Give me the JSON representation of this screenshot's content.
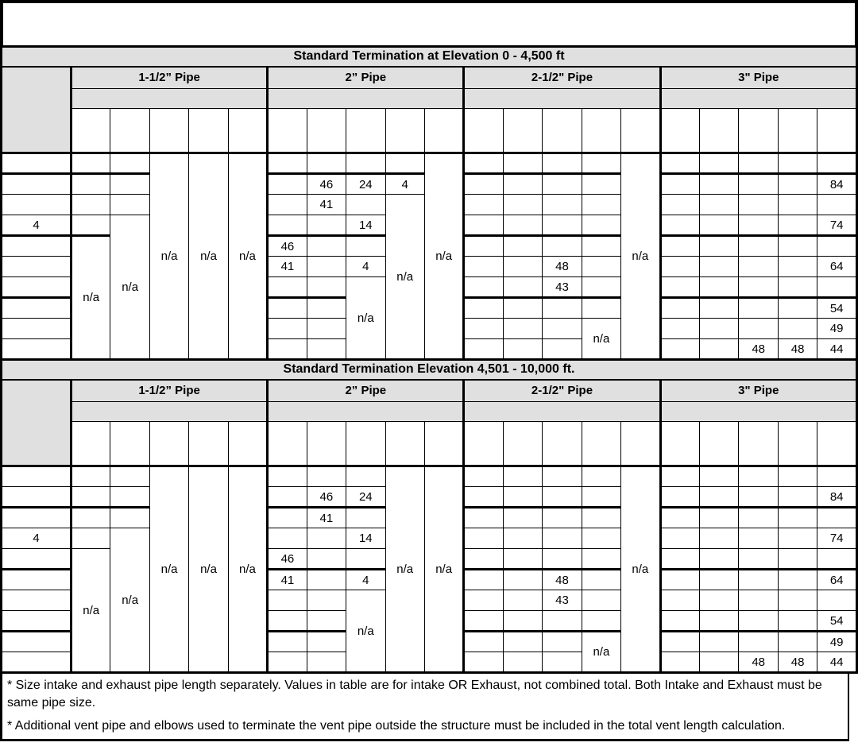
{
  "title_block": "",
  "tables": [
    {
      "title": "Standard Termination at Elevation 0 - 4,500 ft",
      "pipe_groups": [
        "1-1/2” Pipe",
        "2” Pipe",
        "2-1/2\" Pipe",
        "3\" Pipe"
      ],
      "thick_rows": [
        2,
        5,
        8
      ],
      "rows": [
        [
          "",
          "",
          "",
          {
            "t": "n/a",
            "rs": 10
          },
          {
            "t": "n/a",
            "rs": 10
          },
          {
            "t": "n/a",
            "rs": 10
          },
          "",
          "",
          "",
          "",
          {
            "t": "n/a",
            "rs": 10
          },
          "",
          "",
          "",
          "",
          {
            "t": "n/a",
            "rs": 10
          },
          "",
          "",
          "",
          "",
          ""
        ],
        [
          "",
          "",
          "",
          "",
          "46",
          "24",
          "4",
          "",
          "",
          "",
          "",
          "",
          "",
          "",
          "",
          "84"
        ],
        [
          "",
          "",
          "",
          "",
          "41",
          "",
          {
            "t": "n/a",
            "rs": 8
          },
          "",
          "",
          "",
          "",
          "",
          "",
          "",
          "",
          ""
        ],
        [
          "4",
          "",
          {
            "t": "n/a",
            "rs": 7
          },
          "",
          "",
          "14",
          "",
          "",
          "",
          "",
          "",
          "",
          "",
          "",
          "74"
        ],
        [
          "",
          {
            "t": "n/a",
            "rs": 6
          },
          "46",
          "",
          "",
          "",
          "",
          "",
          "",
          "",
          "",
          "",
          "",
          ""
        ],
        [
          "",
          "41",
          "",
          "4",
          "",
          "",
          "48",
          "",
          "",
          "",
          "",
          "",
          "64"
        ],
        [
          "",
          "",
          "",
          {
            "t": "n/a",
            "rs": 4
          },
          "",
          "",
          "43",
          "",
          "",
          "",
          "",
          "",
          ""
        ],
        [
          "",
          "",
          "",
          "",
          "",
          "",
          "",
          "",
          "",
          "",
          "",
          "54"
        ],
        [
          "",
          "",
          "",
          "",
          "",
          "",
          {
            "t": "n/a",
            "rs": 2
          },
          "",
          "",
          "",
          "",
          "49"
        ],
        [
          "",
          "",
          "",
          "",
          "",
          "",
          "",
          "",
          "48",
          "48",
          "44"
        ]
      ]
    },
    {
      "title": "Standard Termination Elevation 4,501 - 10,000 ft.",
      "pipe_groups": [
        "1-1/2” Pipe",
        "2” Pipe",
        "2-1/2\" Pipe",
        "3\" Pipe"
      ],
      "thick_rows": [
        3,
        6,
        9
      ],
      "rows": [
        [
          "",
          "",
          "",
          {
            "t": "n/a",
            "rs": 10
          },
          {
            "t": "n/a",
            "rs": 10
          },
          {
            "t": "n/a",
            "rs": 10
          },
          "",
          "",
          "",
          {
            "t": "n/a",
            "rs": 10
          },
          {
            "t": "n/a",
            "rs": 10
          },
          "",
          "",
          "",
          "",
          {
            "t": "n/a",
            "rs": 10
          },
          "",
          "",
          "",
          "",
          ""
        ],
        [
          "",
          "",
          "",
          "",
          "46",
          "24",
          "",
          "",
          "",
          "",
          "",
          "",
          "",
          "",
          "84"
        ],
        [
          "",
          "",
          "",
          "",
          "41",
          "",
          "",
          "",
          "",
          "",
          "",
          "",
          "",
          "",
          ""
        ],
        [
          "4",
          "",
          {
            "t": "n/a",
            "rs": 7
          },
          "",
          "",
          "14",
          "",
          "",
          "",
          "",
          "",
          "",
          "",
          "",
          "74"
        ],
        [
          "",
          {
            "t": "n/a",
            "rs": 6
          },
          "46",
          "",
          "",
          "",
          "",
          "",
          "",
          "",
          "",
          "",
          "",
          ""
        ],
        [
          "",
          "41",
          "",
          "4",
          "",
          "",
          "48",
          "",
          "",
          "",
          "",
          "",
          "64"
        ],
        [
          "",
          "",
          "",
          {
            "t": "n/a",
            "rs": 4
          },
          "",
          "",
          "43",
          "",
          "",
          "",
          "",
          "",
          ""
        ],
        [
          "",
          "",
          "",
          "",
          "",
          "",
          "",
          "",
          "",
          "",
          "",
          "54"
        ],
        [
          "",
          "",
          "",
          "",
          "",
          "",
          {
            "t": "n/a",
            "rs": 2
          },
          "",
          "",
          "",
          "",
          "49"
        ],
        [
          "",
          "",
          "",
          "",
          "",
          "",
          "",
          "",
          "48",
          "48",
          "44"
        ]
      ]
    }
  ],
  "footnotes": [
    "* Size intake and exhaust pipe length separately. Values in table are for intake OR Exhaust, not combined total. Both Intake and Exhaust must be same pipe size.",
    "* Additional vent pipe and elbows used to terminate the vent pipe outside the structure must be included in the total vent length calculation."
  ]
}
